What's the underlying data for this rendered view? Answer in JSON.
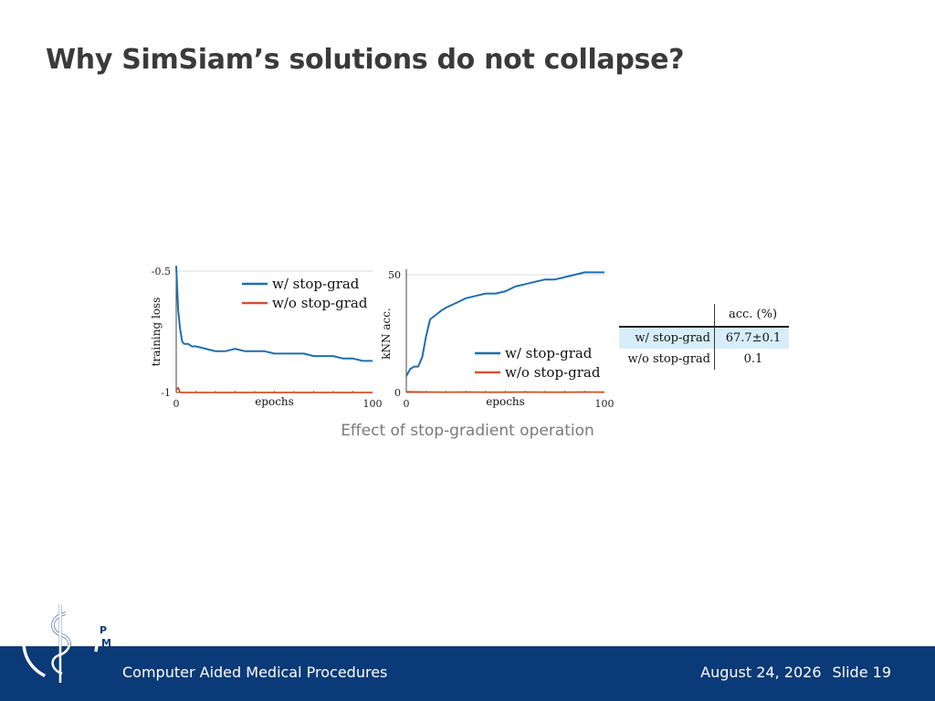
{
  "slide": {
    "title": "Why SimSiam’s solutions do not collapse?",
    "caption": "Effect of stop-gradient operation"
  },
  "footer": {
    "institute": "Computer Aided Medical Procedures",
    "date": "August 24, 2026",
    "slide_number": "Slide 19",
    "logo_text": "CAMP"
  },
  "colors": {
    "stop_grad": "#1f6eb0",
    "no_stop_grad": "#d4532a",
    "footer_bg": "#0b3a78",
    "table_highlight": "#d7eefa"
  },
  "table": {
    "header": "acc. (%)",
    "rows": [
      {
        "label": "w/ stop-grad",
        "value": "67.7±0.1",
        "highlight": true
      },
      {
        "label": "w/o stop-grad",
        "value": "0.1",
        "highlight": false
      }
    ]
  },
  "chart_data": [
    {
      "type": "line",
      "xlabel": "epochs",
      "ylabel": "training loss",
      "xlim": [
        0,
        100
      ],
      "ylim": [
        -1,
        -0.5
      ],
      "xticks": [
        "0",
        "100"
      ],
      "yticks": [
        "-0.5",
        "-1"
      ],
      "grid": false,
      "legend_position": "top-right",
      "series": [
        {
          "name": "w/ stop-grad",
          "x": [
            0,
            1,
            2,
            3,
            4,
            6,
            8,
            10,
            15,
            20,
            25,
            30,
            35,
            40,
            45,
            50,
            55,
            60,
            65,
            70,
            75,
            80,
            85,
            90,
            95,
            100
          ],
          "y": [
            -0.48,
            -0.66,
            -0.74,
            -0.79,
            -0.8,
            -0.8,
            -0.81,
            -0.81,
            -0.82,
            -0.83,
            -0.83,
            -0.82,
            -0.83,
            -0.83,
            -0.83,
            -0.84,
            -0.84,
            -0.84,
            -0.84,
            -0.85,
            -0.85,
            -0.85,
            -0.86,
            -0.86,
            -0.87,
            -0.87
          ]
        },
        {
          "name": "w/o stop-grad",
          "x": [
            0,
            1,
            2,
            3,
            5,
            10,
            20,
            30,
            40,
            50,
            60,
            70,
            80,
            90,
            100
          ],
          "y": [
            -0.99,
            -0.98,
            -1.0,
            -1.0,
            -1.0,
            -1.0,
            -1.0,
            -1.0,
            -1.0,
            -1.0,
            -1.0,
            -1.0,
            -1.0,
            -1.0,
            -1.0
          ]
        }
      ]
    },
    {
      "type": "line",
      "xlabel": "epochs",
      "ylabel": "kNN acc.",
      "xlim": [
        0,
        100
      ],
      "ylim": [
        0,
        50
      ],
      "xticks": [
        "0",
        "100"
      ],
      "yticks": [
        "50",
        "0"
      ],
      "grid": false,
      "legend_position": "bottom-right",
      "series": [
        {
          "name": "w/ stop-grad",
          "x": [
            0,
            2,
            4,
            6,
            8,
            10,
            12,
            15,
            18,
            20,
            25,
            30,
            35,
            40,
            45,
            50,
            55,
            60,
            65,
            70,
            75,
            80,
            85,
            90,
            95,
            100
          ],
          "y": [
            7,
            10,
            11,
            11,
            15,
            24,
            31,
            33,
            35,
            36,
            38,
            40,
            41,
            42,
            42,
            43,
            45,
            46,
            47,
            48,
            48,
            49,
            50,
            51,
            51,
            51
          ]
        },
        {
          "name": "w/o stop-grad",
          "x": [
            0,
            10,
            20,
            30,
            40,
            50,
            60,
            70,
            80,
            90,
            100
          ],
          "y": [
            0.3,
            0.2,
            0.1,
            0.2,
            0.1,
            0.1,
            0.2,
            0.1,
            0.1,
            0.2,
            0.1
          ]
        }
      ]
    }
  ]
}
